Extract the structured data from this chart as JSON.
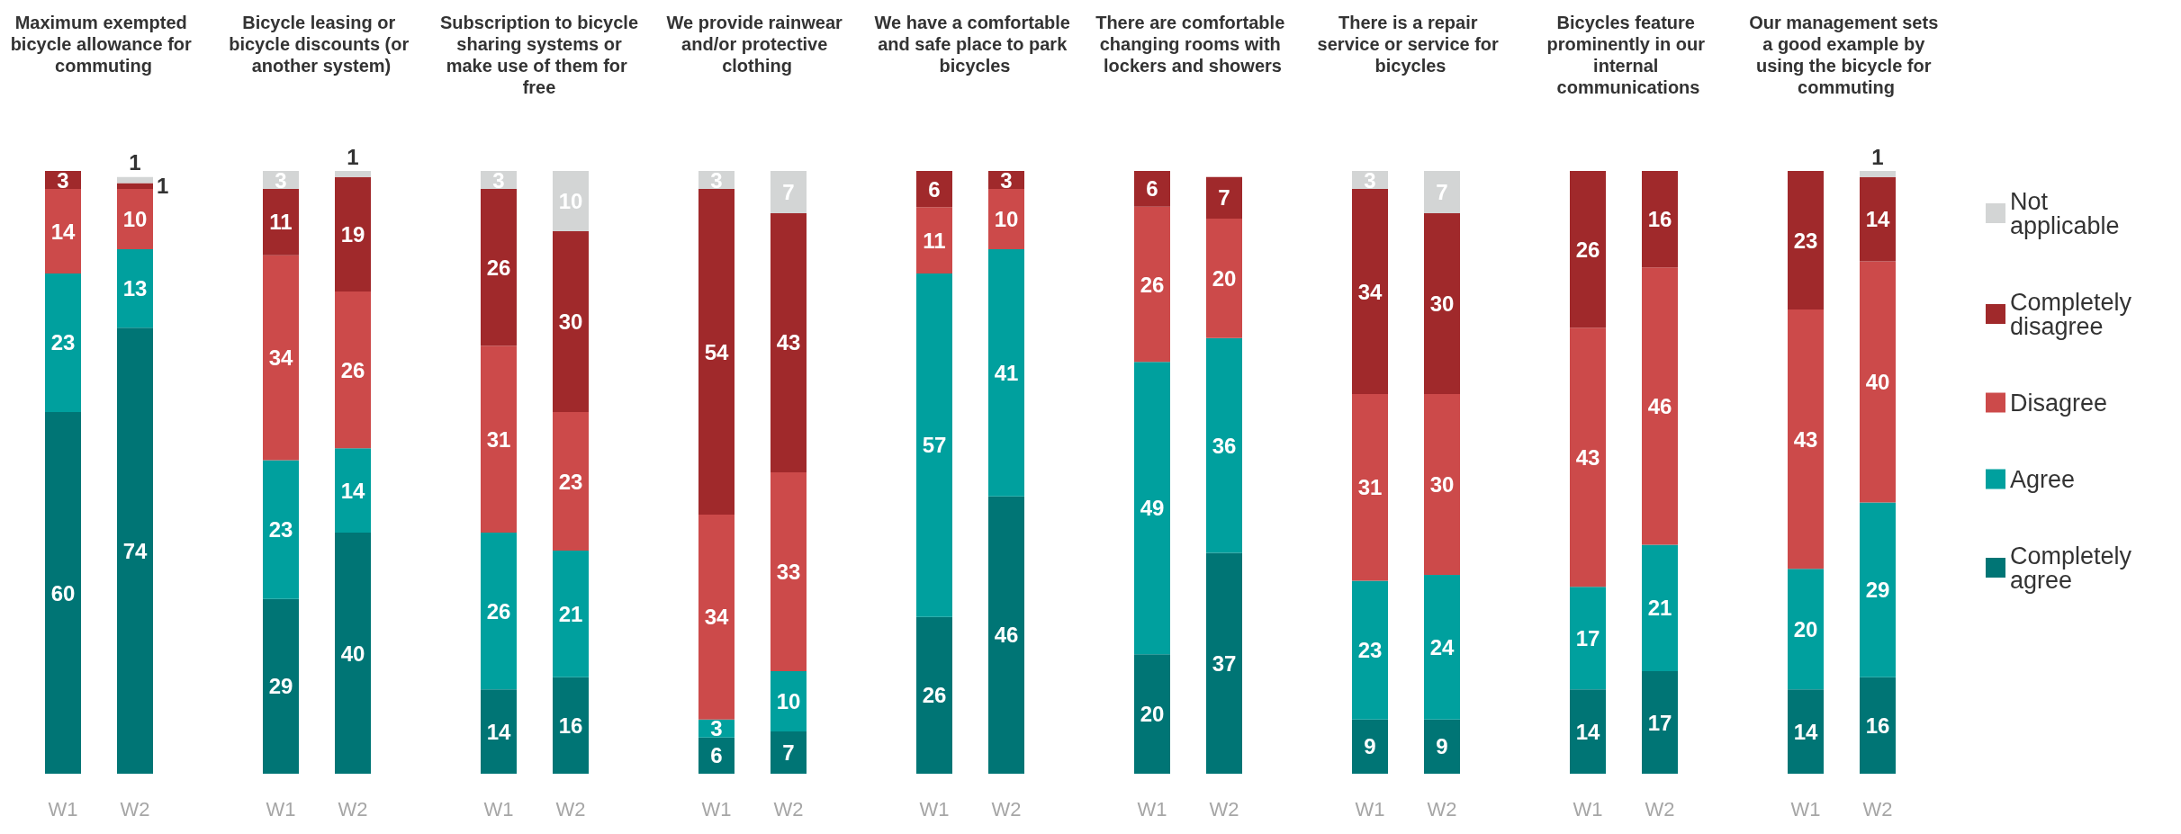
{
  "chart_data": [
    {
      "type": "bar",
      "stacked": true,
      "data_labels": true,
      "legend": false,
      "title": "Maximum exempted bicycle allowance for commuting",
      "categories": [
        "W1",
        "W2"
      ],
      "series": [
        {
          "color": "#007575",
          "values": [
            60,
            74
          ]
        },
        {
          "color": "#00a09e",
          "values": [
            23,
            13
          ]
        },
        {
          "color": "#cc4a4a",
          "values": [
            14,
            10
          ]
        },
        {
          "color": "#a0292b",
          "values": [
            3,
            1
          ]
        },
        {
          "color": "#d3d5d5",
          "values": [
            null,
            1
          ]
        }
      ]
    },
    {
      "type": "bar",
      "stacked": true,
      "data_labels": true,
      "legend": false,
      "title": "Bicycle leasing or bicycle discounts (or another system)",
      "categories": [
        "W1",
        "W2"
      ],
      "series": [
        {
          "color": "#007575",
          "values": [
            29,
            40
          ]
        },
        {
          "color": "#00a09e",
          "values": [
            23,
            14
          ]
        },
        {
          "color": "#cc4a4a",
          "values": [
            34,
            26
          ]
        },
        {
          "color": "#a0292b",
          "values": [
            11,
            19
          ]
        },
        {
          "color": "#d3d5d5",
          "values": [
            3,
            1
          ]
        }
      ]
    },
    {
      "type": "bar",
      "stacked": true,
      "data_labels": true,
      "legend": false,
      "title": "Subscription to bicycle sharing systems or make use of them for free",
      "categories": [
        "W1",
        "W2"
      ],
      "series": [
        {
          "color": "#007575",
          "values": [
            14,
            16
          ]
        },
        {
          "color": "#00a09e",
          "values": [
            26,
            21
          ]
        },
        {
          "color": "#cc4a4a",
          "values": [
            31,
            23
          ]
        },
        {
          "color": "#a0292b",
          "values": [
            26,
            30
          ]
        },
        {
          "color": "#d3d5d5",
          "values": [
            3,
            10
          ]
        }
      ]
    },
    {
      "type": "bar",
      "stacked": true,
      "data_labels": true,
      "legend": false,
      "title": "We provide rainwear and/or protective clothing",
      "categories": [
        "W1",
        "W2"
      ],
      "series": [
        {
          "color": "#007575",
          "values": [
            6,
            7
          ]
        },
        {
          "color": "#00a09e",
          "values": [
            3,
            10
          ]
        },
        {
          "color": "#cc4a4a",
          "values": [
            34,
            33
          ]
        },
        {
          "color": "#a0292b",
          "values": [
            54,
            43
          ]
        },
        {
          "color": "#d3d5d5",
          "values": [
            3,
            7
          ]
        }
      ]
    },
    {
      "type": "bar",
      "stacked": true,
      "data_labels": true,
      "legend": false,
      "title": "We have a comfortable and safe place to park bicycles",
      "categories": [
        "W1",
        "W2"
      ],
      "series": [
        {
          "color": "#007575",
          "values": [
            26,
            46
          ]
        },
        {
          "color": "#00a09e",
          "values": [
            57,
            41
          ]
        },
        {
          "color": "#cc4a4a",
          "values": [
            11,
            10
          ]
        },
        {
          "color": "#a0292b",
          "values": [
            6,
            3
          ]
        },
        {
          "color": "#d3d5d5",
          "values": [
            null,
            null
          ]
        }
      ]
    },
    {
      "type": "bar",
      "stacked": true,
      "data_labels": true,
      "legend": false,
      "title": "There are comfortable changing rooms with lockers and showers",
      "categories": [
        "W1",
        "W2"
      ],
      "series": [
        {
          "color": "#007575",
          "values": [
            20,
            37
          ]
        },
        {
          "color": "#00a09e",
          "values": [
            49,
            36
          ]
        },
        {
          "color": "#cc4a4a",
          "values": [
            26,
            20
          ]
        },
        {
          "color": "#a0292b",
          "values": [
            6,
            7
          ]
        },
        {
          "color": "#d3d5d5",
          "values": [
            null,
            null
          ]
        }
      ]
    },
    {
      "type": "bar",
      "stacked": true,
      "data_labels": true,
      "legend": false,
      "title": "There is a repair service or service for bicycles",
      "categories": [
        "W1",
        "W2"
      ],
      "series": [
        {
          "color": "#007575",
          "values": [
            9,
            9
          ]
        },
        {
          "color": "#00a09e",
          "values": [
            23,
            24
          ]
        },
        {
          "color": "#cc4a4a",
          "values": [
            31,
            30
          ]
        },
        {
          "color": "#a0292b",
          "values": [
            34,
            30
          ]
        },
        {
          "color": "#d3d5d5",
          "values": [
            3,
            7
          ]
        }
      ]
    },
    {
      "type": "bar",
      "stacked": true,
      "data_labels": true,
      "legend": false,
      "title": "Bicycles feature prominently in our internal communications",
      "categories": [
        "W1",
        "W2"
      ],
      "series": [
        {
          "color": "#007575",
          "values": [
            14,
            17
          ]
        },
        {
          "color": "#00a09e",
          "values": [
            17,
            21
          ]
        },
        {
          "color": "#cc4a4a",
          "values": [
            43,
            46
          ]
        },
        {
          "color": "#a0292b",
          "values": [
            26,
            16
          ]
        },
        {
          "color": "#d3d5d5",
          "values": [
            null,
            null
          ]
        }
      ]
    },
    {
      "type": "bar",
      "stacked": true,
      "data_labels": true,
      "legend": "right",
      "title": "Our management sets a good example by using the bicycle for commuting",
      "categories": [
        "W1",
        "W2"
      ],
      "series": [
        {
          "name": "Completely agree",
          "color": "#007575",
          "values": [
            14,
            16
          ]
        },
        {
          "name": "Agree",
          "color": "#00a09e",
          "values": [
            20,
            29
          ]
        },
        {
          "name": "Disagree",
          "color": "#cc4a4a",
          "values": [
            43,
            40
          ]
        },
        {
          "name": "Completely disagree",
          "color": "#a0292b",
          "values": [
            23,
            14
          ]
        },
        {
          "name": "Not applicable",
          "color": "#d3d5d5",
          "values": [
            null,
            1
          ]
        }
      ]
    }
  ]
}
